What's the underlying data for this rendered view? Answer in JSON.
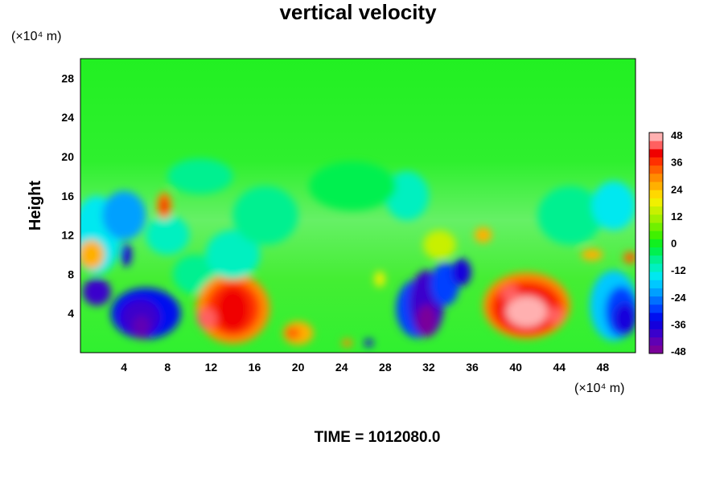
{
  "chart_data": {
    "type": "heatmap",
    "title": "vertical velocity",
    "ylabel": "Height",
    "xlabel": "",
    "x_unit_label": "(×10⁴ m)",
    "y_unit_label": "(×10⁴ m)",
    "x_range": [
      0,
      51
    ],
    "y_range": [
      0,
      30
    ],
    "x_ticks": [
      4,
      8,
      12,
      16,
      20,
      24,
      28,
      32,
      36,
      40,
      44,
      48
    ],
    "y_ticks": [
      4,
      8,
      12,
      16,
      20,
      24,
      28
    ],
    "colorbar": {
      "range": [
        -48,
        48
      ],
      "step": 4,
      "tick_labels": [
        48,
        36,
        24,
        12,
        0,
        -12,
        -24,
        -36,
        -48
      ],
      "colors": [
        "#7a009a",
        "#6000b4",
        "#3a00cc",
        "#1400dc",
        "#0010f0",
        "#0040ff",
        "#0070ff",
        "#00a0ff",
        "#00c8ff",
        "#00e8f0",
        "#00f0c0",
        "#00f090",
        "#00f050",
        "#10f020",
        "#40f000",
        "#70f000",
        "#a0f000",
        "#c8f000",
        "#f0f000",
        "#ffd800",
        "#ffb000",
        "#ff8c00",
        "#ff6000",
        "#ff3000",
        "#f00000",
        "#ff6060",
        "#ffb0b0"
      ]
    },
    "features": [
      {
        "x": 14,
        "y": 4.5,
        "value": 36,
        "label": "updraft"
      },
      {
        "x": 41,
        "y": 4.5,
        "value": 48,
        "label": "updraft"
      },
      {
        "x": 6,
        "y": 3.5,
        "value": -40,
        "label": "downdraft"
      },
      {
        "x": 31.5,
        "y": 4.5,
        "value": -44,
        "label": "downdraft"
      },
      {
        "x": 49.5,
        "y": 4.5,
        "value": -30,
        "label": "downdraft"
      }
    ]
  },
  "footer": {
    "time_label": "TIME = 1012080.0"
  }
}
